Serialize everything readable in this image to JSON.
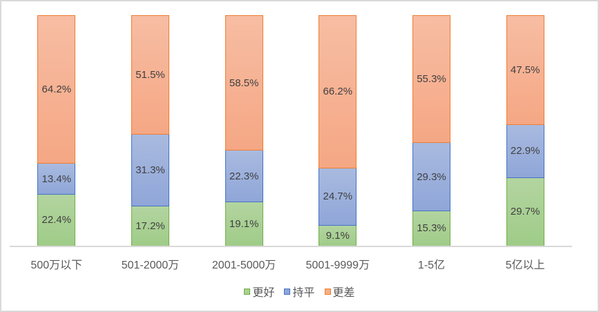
{
  "chart_data": {
    "type": "bar",
    "stacked": true,
    "percent_stacked": true,
    "title": "",
    "xlabel": "",
    "ylabel": "",
    "ylim": [
      0,
      100
    ],
    "grid": false,
    "legend_position": "bottom",
    "categories": [
      "500万以下",
      "501-2000万",
      "2001-5000万",
      "5001-9999万",
      "1-5亿",
      "5亿以上"
    ],
    "series": [
      {
        "name": "更好",
        "color": "#70ad47",
        "values": [
          22.4,
          17.2,
          19.1,
          9.1,
          15.3,
          29.7
        ],
        "labels": [
          "22.4%",
          "17.2%",
          "19.1%",
          "9.1%",
          "15.3%",
          "29.7%"
        ]
      },
      {
        "name": "持平",
        "color": "#4472c4",
        "values": [
          13.4,
          31.3,
          22.3,
          24.7,
          29.3,
          22.9
        ],
        "labels": [
          "13.4%",
          "31.3%",
          "22.3%",
          "24.7%",
          "29.3%",
          "22.9%"
        ]
      },
      {
        "name": "更差",
        "color": "#ed7d31",
        "values": [
          64.2,
          51.5,
          58.5,
          66.2,
          55.3,
          47.5
        ],
        "labels": [
          "64.2%",
          "51.5%",
          "58.5%",
          "66.2%",
          "55.3%",
          "47.5%"
        ]
      }
    ]
  },
  "legend": {
    "items": [
      {
        "label": "更好",
        "color": "#a9d18e",
        "border": "#70ad47"
      },
      {
        "label": "持平",
        "color": "#8fa6d8",
        "border": "#4472c4"
      },
      {
        "label": "更差",
        "color": "#f4b183",
        "border": "#ed7d31"
      }
    ]
  }
}
